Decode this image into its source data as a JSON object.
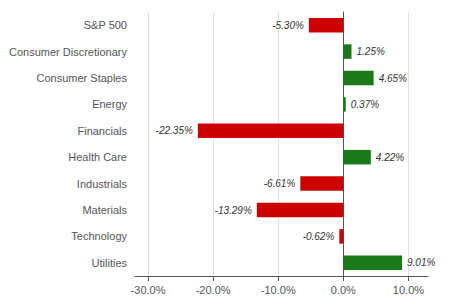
{
  "chart_data": {
    "type": "bar",
    "orientation": "horizontal",
    "categories": [
      "S&P 500",
      "Consumer Discretionary",
      "Consumer Staples",
      "Energy",
      "Financials",
      "Health Care",
      "Industrials",
      "Materials",
      "Technology",
      "Utilities"
    ],
    "values": [
      -5.3,
      1.25,
      4.65,
      0.37,
      -22.35,
      4.22,
      -6.61,
      -13.29,
      -0.62,
      9.01
    ],
    "value_labels": [
      "-5.30%",
      "1.25%",
      "4.65%",
      "0.37%",
      "-22.35%",
      "4.22%",
      "-6.61%",
      "-13.29%",
      "-0.62%",
      "9.01%"
    ],
    "colors": [
      "#cc0000",
      "#1a7a1a",
      "#1a7a1a",
      "#1a7a1a",
      "#cc0000",
      "#1a7a1a",
      "#cc0000",
      "#cc0000",
      "#cc0000",
      "#1a7a1a"
    ],
    "xlim": [
      -32,
      13
    ],
    "xticks": [
      {
        "value": -30,
        "label": "-30.0%"
      },
      {
        "value": -20,
        "label": "-20.0%"
      },
      {
        "value": -10,
        "label": "-10.0%"
      },
      {
        "value": 0,
        "label": "0.0%"
      },
      {
        "value": 10,
        "label": "10.0%"
      }
    ],
    "grid": true,
    "data_labels": true
  }
}
